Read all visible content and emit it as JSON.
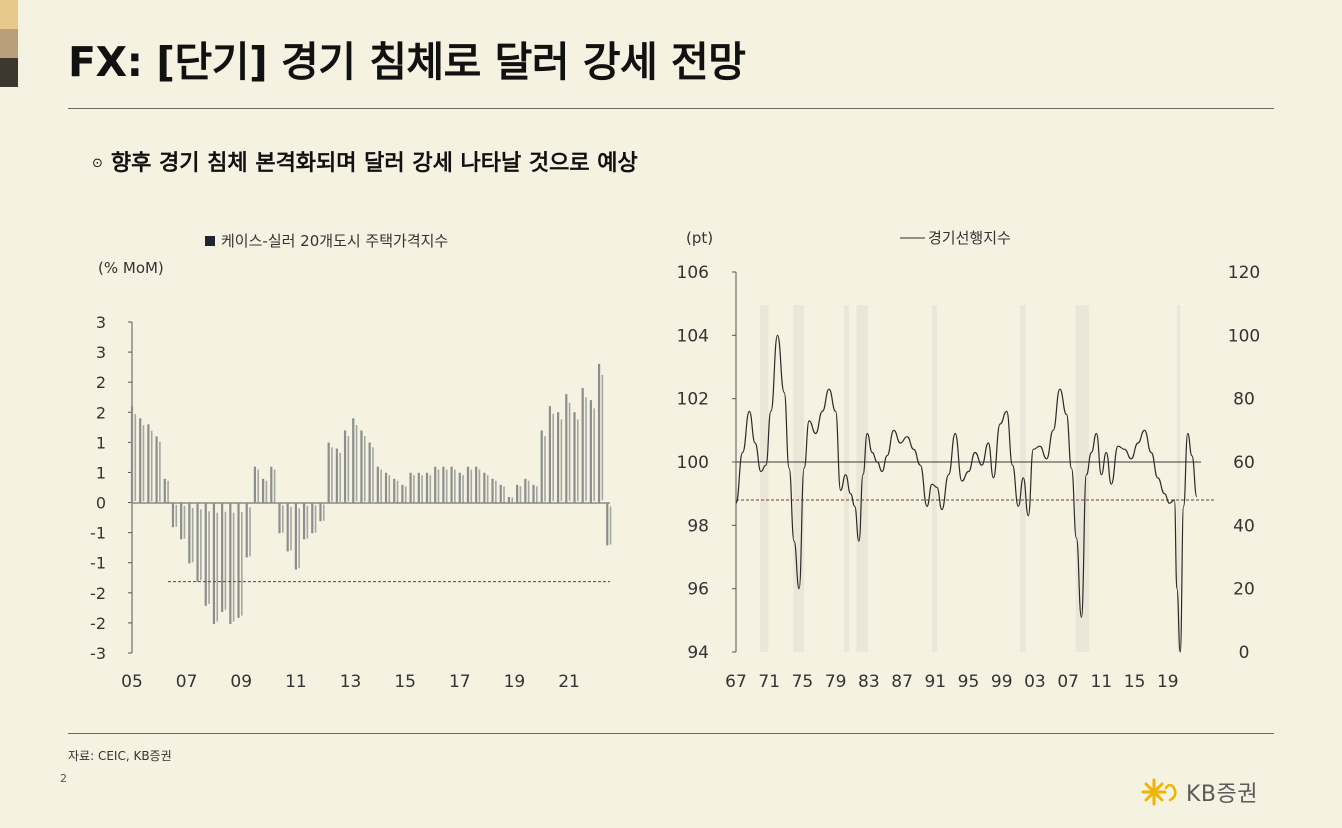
{
  "header": {
    "title": "FX: [단기] 경기 침체로 달러 강세 전망",
    "swatch_colors": [
      "#e8c98c",
      "#b9a07a",
      "#3c382f"
    ]
  },
  "bullet": {
    "icon": "circle-dot-icon",
    "text": "향후 경기 침체 본격화되며 달러 강세 나타날 것으로 예상"
  },
  "chart_data": [
    {
      "type": "bar",
      "legend": "케이스-실러 20개도시 주택가격지수",
      "unit_label": "(% MoM)",
      "y_tick_labels": [
        "3",
        "3",
        "2",
        "2",
        "1",
        "1",
        "0",
        "-1",
        "-1",
        "-2",
        "-2",
        "-3"
      ],
      "ylim": [
        -2.5,
        3.0
      ],
      "x_tick_labels": [
        "05",
        "07",
        "09",
        "11",
        "13",
        "15",
        "17",
        "19",
        "21"
      ],
      "x_range": [
        2005.0,
        2022.5
      ],
      "reference_line": -1.3,
      "bar_color": "#8a8e8c",
      "series": [
        {
          "x": [
            2005.0,
            2005.3,
            2005.6,
            2005.9,
            2006.2,
            2006.5,
            2006.8,
            2007.1,
            2007.4,
            2007.7,
            2008.0,
            2008.3,
            2008.6,
            2008.9,
            2009.2,
            2009.5,
            2009.8,
            2010.1,
            2010.4,
            2010.7,
            2011.0,
            2011.3,
            2011.6,
            2011.9,
            2012.2,
            2012.5,
            2012.8,
            2013.1,
            2013.4,
            2013.7,
            2014.0,
            2014.3,
            2014.6,
            2014.9,
            2015.2,
            2015.5,
            2015.8,
            2016.1,
            2016.4,
            2016.7,
            2017.0,
            2017.3,
            2017.6,
            2017.9,
            2018.2,
            2018.5,
            2018.8,
            2019.1,
            2019.4,
            2019.7,
            2020.0,
            2020.3,
            2020.6,
            2020.9,
            2021.2,
            2021.5,
            2021.8,
            2022.1,
            2022.4
          ],
          "values": [
            1.6,
            1.4,
            1.3,
            1.1,
            0.4,
            -0.4,
            -0.6,
            -1.0,
            -1.3,
            -1.7,
            -2.0,
            -1.8,
            -2.0,
            -1.9,
            -0.9,
            0.6,
            0.4,
            0.6,
            -0.5,
            -0.8,
            -1.1,
            -0.6,
            -0.5,
            -0.3,
            1.0,
            0.9,
            1.2,
            1.4,
            1.2,
            1.0,
            0.6,
            0.5,
            0.4,
            0.3,
            0.5,
            0.5,
            0.5,
            0.6,
            0.6,
            0.6,
            0.5,
            0.6,
            0.6,
            0.5,
            0.4,
            0.3,
            0.1,
            0.3,
            0.4,
            0.3,
            1.2,
            1.6,
            1.5,
            1.8,
            1.5,
            1.9,
            1.7,
            2.3,
            -0.7
          ]
        }
      ]
    },
    {
      "type": "line",
      "legend": "경기선행지수",
      "unit_label": "(pt)",
      "y_left_tick_labels": [
        "106",
        "104",
        "102",
        "100",
        "98",
        "96",
        "94"
      ],
      "ylim_left": [
        94,
        106
      ],
      "y_right_tick_labels": [
        "120",
        "100",
        "80",
        "60",
        "40",
        "20",
        "0"
      ],
      "ylim_right": [
        0,
        120
      ],
      "x_tick_labels": [
        "67",
        "71",
        "75",
        "79",
        "83",
        "87",
        "91",
        "95",
        "99",
        "03",
        "07",
        "11",
        "15",
        "19"
      ],
      "x_range": [
        1967,
        2023
      ],
      "reference_line_solid": 100,
      "reference_line_dashed": 98.8,
      "recession_bands": [
        [
          1969.9,
          1970.9
        ],
        [
          1973.9,
          1975.2
        ],
        [
          1980.0,
          1980.6
        ],
        [
          1981.5,
          1982.9
        ],
        [
          1990.6,
          1991.2
        ],
        [
          2001.2,
          2001.9
        ],
        [
          2007.9,
          2009.5
        ],
        [
          2020.1,
          2020.5
        ]
      ],
      "line_color": "#2a2a2a",
      "band_color": "#ebe7d8",
      "series": [
        {
          "x": [
            1967.0,
            1967.8,
            1968.6,
            1969.3,
            1970.0,
            1970.6,
            1971.2,
            1972.0,
            1972.8,
            1973.4,
            1974.0,
            1974.6,
            1975.2,
            1975.8,
            1976.6,
            1977.4,
            1978.2,
            1979.0,
            1979.6,
            1980.2,
            1980.8,
            1981.3,
            1981.8,
            1982.3,
            1982.8,
            1983.4,
            1984.0,
            1984.6,
            1985.2,
            1986.0,
            1986.8,
            1987.6,
            1988.4,
            1989.2,
            1990.0,
            1990.6,
            1991.2,
            1991.8,
            1992.6,
            1993.4,
            1994.2,
            1995.0,
            1995.8,
            1996.6,
            1997.4,
            1998.0,
            1998.8,
            1999.6,
            2000.3,
            2001.0,
            2001.6,
            2002.2,
            2002.8,
            2003.6,
            2004.4,
            2005.2,
            2006.0,
            2006.8,
            2007.4,
            2008.0,
            2008.6,
            2009.2,
            2009.8,
            2010.4,
            2011.0,
            2011.6,
            2012.2,
            2013.0,
            2013.8,
            2014.6,
            2015.4,
            2016.2,
            2017.0,
            2017.8,
            2018.6,
            2019.2,
            2019.8,
            2020.1,
            2020.5,
            2020.9,
            2021.4,
            2021.9,
            2022.5
          ],
          "values": [
            98.7,
            100.3,
            101.6,
            100.6,
            99.7,
            99.9,
            101.6,
            104.0,
            102.2,
            99.8,
            97.5,
            96.0,
            99.8,
            101.3,
            100.9,
            101.6,
            102.3,
            101.6,
            99.1,
            99.6,
            99.0,
            98.6,
            97.5,
            99.6,
            100.9,
            100.3,
            100.0,
            99.7,
            100.2,
            101.0,
            100.6,
            100.8,
            100.4,
            99.9,
            98.6,
            99.3,
            99.2,
            98.5,
            99.6,
            100.9,
            99.4,
            99.7,
            100.3,
            99.9,
            100.6,
            99.5,
            101.2,
            101.6,
            99.9,
            98.6,
            99.5,
            98.3,
            100.4,
            100.5,
            100.1,
            101.0,
            102.3,
            101.5,
            99.8,
            97.6,
            95.1,
            99.6,
            100.3,
            100.9,
            99.6,
            100.3,
            99.3,
            100.5,
            100.4,
            100.1,
            100.6,
            101.0,
            100.3,
            99.5,
            99.0,
            98.7,
            98.8,
            96.0,
            94.0,
            98.6,
            100.9,
            100.2,
            98.9
          ]
        }
      ]
    }
  ],
  "footer": {
    "source": "자료: CEIC, KB증권",
    "page_number": "2",
    "logo_text": "KB증권",
    "logo_icon": "kb-star-icon",
    "logo_color": "#f0b400"
  }
}
